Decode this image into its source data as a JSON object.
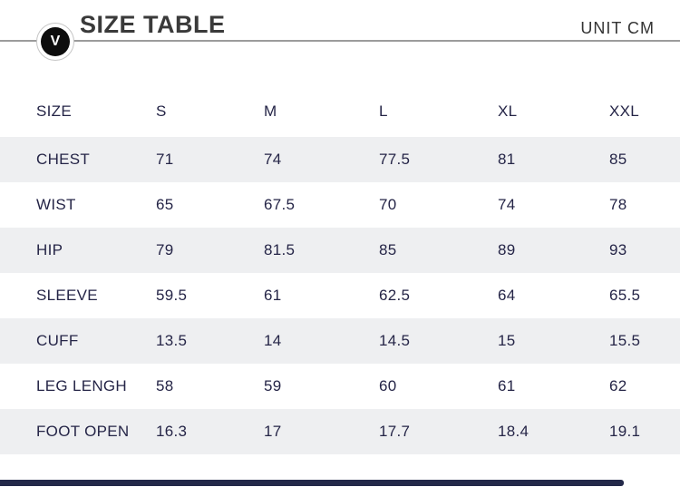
{
  "header": {
    "title": "SIZE TABLE",
    "unit_label": "UNIT CM",
    "badge_letter": "V"
  },
  "table": {
    "size_label": "SIZE",
    "columns": [
      "S",
      "M",
      "L",
      "XL",
      "XXL"
    ],
    "rows": [
      {
        "label": "CHEST",
        "values": [
          "71",
          "74",
          "77.5",
          "81",
          "85"
        ]
      },
      {
        "label": "WIST",
        "values": [
          "65",
          "67.5",
          "70",
          "74",
          "78"
        ]
      },
      {
        "label": "HIP",
        "values": [
          "79",
          "81.5",
          "85",
          "89",
          "93"
        ]
      },
      {
        "label": "SLEEVE",
        "values": [
          "59.5",
          "61",
          "62.5",
          "64",
          "65.5"
        ]
      },
      {
        "label": "CUFF",
        "values": [
          "13.5",
          "14",
          "14.5",
          "15",
          "15.5"
        ]
      },
      {
        "label": "LEG LENGH",
        "values": [
          "58",
          "59",
          "60",
          "61",
          "62"
        ]
      },
      {
        "label": "FOOT OPEN",
        "values": [
          "16.3",
          "17",
          "17.7",
          "18.4",
          "19.1"
        ]
      }
    ]
  },
  "colors": {
    "text_navy": "#252547",
    "row_alt_bg": "#eeeff1",
    "divider_gray": "#9c9c9c",
    "title_dark": "#3a3a3a",
    "footer_bar_navy": "#232949",
    "badge_black": "#0d0d0d"
  }
}
